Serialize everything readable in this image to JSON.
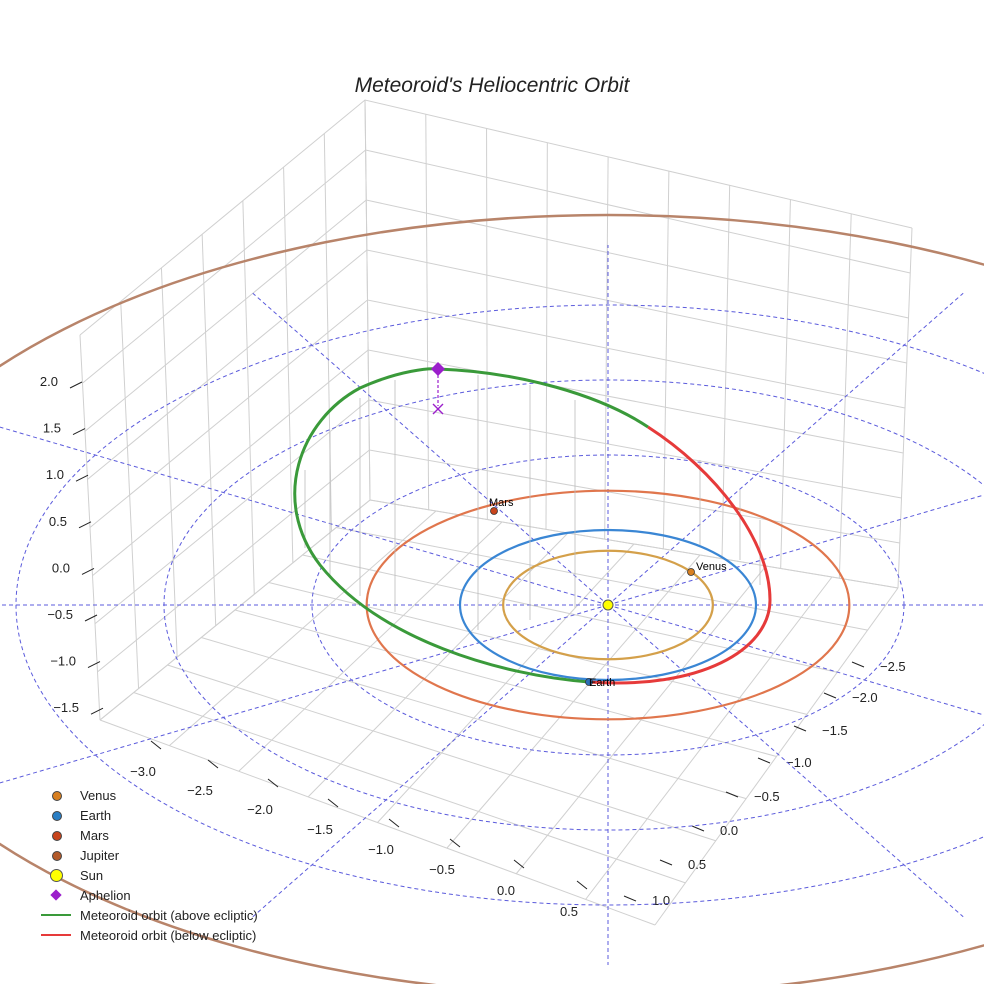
{
  "chart_data": {
    "type": "3d-line",
    "title": "Meteoroid's Heliocentric Orbit",
    "x_ticks": [
      "−3.0",
      "−2.5",
      "−2.0",
      "−1.5",
      "−1.0",
      "−0.5",
      "0.0",
      "0.5"
    ],
    "y_ticks": [
      "−2.5",
      "−2.0",
      "−1.5",
      "−1.0",
      "−0.5",
      "0.0",
      "0.5",
      "1.0"
    ],
    "z_ticks": [
      "2.0",
      "1.5",
      "1.0",
      "0.5",
      "0.0",
      "−0.5",
      "−1.0",
      "−1.5"
    ],
    "planets": [
      {
        "name": "Venus",
        "orbit_radius_au": 0.723,
        "color": "#d4a04a",
        "marker_color": "#d87f20"
      },
      {
        "name": "Earth",
        "orbit_radius_au": 1.0,
        "color": "#3a86d4",
        "marker_color": "#2a6fb8"
      },
      {
        "name": "Mars",
        "orbit_radius_au": 1.524,
        "color": "#e0764d",
        "marker_color": "#c8441c"
      },
      {
        "name": "Jupiter",
        "orbit_radius_au": 5.2,
        "color": "#b8846a",
        "marker_color": "#b35a2a"
      }
    ],
    "planet_labels": [
      "Mars",
      "Venus",
      "Earth"
    ],
    "meteoroid": {
      "above_color": "#3a9a3a",
      "below_color": "#e63a3a",
      "aphelion_color": "#9b1fcb"
    },
    "ecliptic_ring_radii_au": [
      1,
      2,
      3,
      4
    ],
    "legend": [
      {
        "label": "Venus",
        "symbol": "dot",
        "color": "#d87f20"
      },
      {
        "label": "Earth",
        "symbol": "dot",
        "color": "#2a7ec4"
      },
      {
        "label": "Mars",
        "symbol": "dot",
        "color": "#c8441c"
      },
      {
        "label": "Jupiter",
        "symbol": "dot",
        "color": "#b35a2a"
      },
      {
        "label": "Sun",
        "symbol": "sun",
        "color": "#ffff00"
      },
      {
        "label": "Aphelion",
        "symbol": "diamond",
        "color": "#9b1fcb"
      },
      {
        "label": "Meteoroid orbit (above ecliptic)",
        "symbol": "line",
        "color": "#3a9a3a"
      },
      {
        "label": "Meteoroid orbit (below ecliptic)",
        "symbol": "line",
        "color": "#e63a3a"
      }
    ]
  }
}
